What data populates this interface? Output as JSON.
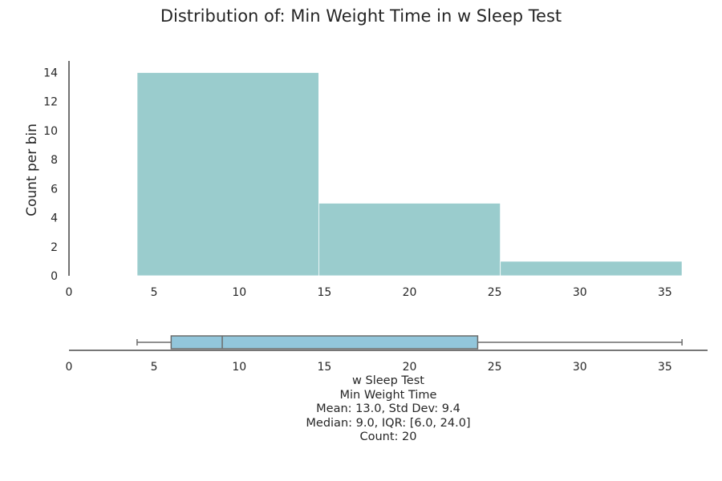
{
  "chart_data": [
    {
      "type": "histogram",
      "title": "Distribution of: Min Weight Time in w Sleep Test",
      "ylabel": "Count per bin",
      "xlim": [
        0,
        37.5
      ],
      "ylim": [
        0,
        14.8
      ],
      "x_ticks": [
        0,
        5,
        10,
        15,
        20,
        25,
        30,
        35
      ],
      "y_ticks": [
        0,
        2,
        4,
        6,
        8,
        10,
        12,
        14
      ],
      "bins": [
        {
          "start": 4.0,
          "end": 14.67,
          "count": 14
        },
        {
          "start": 14.67,
          "end": 25.33,
          "count": 5
        },
        {
          "start": 25.33,
          "end": 36.0,
          "count": 1
        }
      ],
      "bar_color": "#9ACCCD",
      "grid": false
    },
    {
      "type": "boxplot",
      "xlim": [
        0,
        37.5
      ],
      "x_ticks": [
        0,
        5,
        10,
        15,
        20,
        25,
        30,
        35
      ],
      "min": 4.0,
      "q1": 6.0,
      "median": 9.0,
      "q3": 24.0,
      "max": 36.0,
      "box_color": "#92C6DB"
    }
  ],
  "summary": {
    "line1": "w Sleep Test",
    "line2": "Min Weight Time",
    "line3": "Mean: 13.0, Std Dev: 9.4",
    "line4": "Median: 9.0, IQR: [6.0, 24.0]",
    "line5": "Count: 20"
  }
}
